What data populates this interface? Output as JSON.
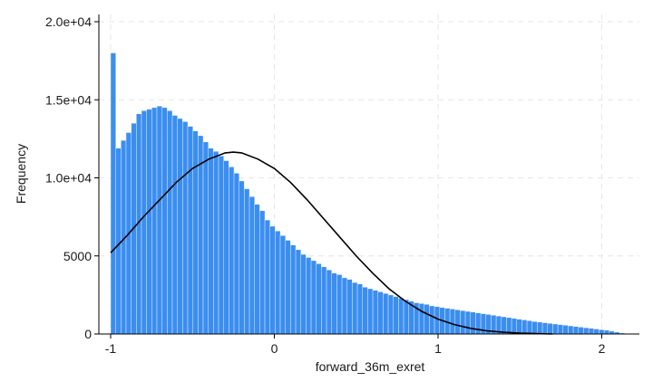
{
  "chart_data": {
    "type": "bar",
    "subtype": "histogram",
    "title": "",
    "xlabel": "forward_36m_exret",
    "ylabel": "Frequency",
    "xlim": [
      -1.0,
      2.2
    ],
    "ylim": [
      0,
      20000
    ],
    "xticks": [
      {
        "value": -1,
        "label": "-1"
      },
      {
        "value": 0,
        "label": "0"
      },
      {
        "value": 1,
        "label": "1"
      },
      {
        "value": 2,
        "label": "2"
      }
    ],
    "yticks": [
      {
        "value": 0,
        "label": "0"
      },
      {
        "value": 5000,
        "label": "5000"
      },
      {
        "value": 10000,
        "label": "1.0e+04"
      },
      {
        "value": 15000,
        "label": "1.5e+04"
      },
      {
        "value": 20000,
        "label": "2.0e+04"
      }
    ],
    "grid": true,
    "colors": {
      "bars": "#3b8ef0",
      "bar_edge": "#ffffff",
      "curve": "#000000"
    },
    "histogram": {
      "bin_start": -1.0,
      "bin_width": 0.0314,
      "counts": [
        18000,
        11900,
        12400,
        12900,
        13500,
        14100,
        14300,
        14400,
        14500,
        14600,
        14500,
        14300,
        14000,
        13800,
        13600,
        13300,
        13000,
        12700,
        12300,
        11900,
        11700,
        11400,
        11100,
        10700,
        10300,
        9800,
        9300,
        8800,
        8300,
        7900,
        7300,
        6900,
        6600,
        6300,
        6000,
        5700,
        5400,
        5100,
        4900,
        4700,
        4500,
        4300,
        4100,
        3900,
        3800,
        3600,
        3500,
        3300,
        3200,
        3000,
        2900,
        2800,
        2700,
        2600,
        2500,
        2400,
        2300,
        2200,
        2100,
        2000,
        1950,
        1900,
        1800,
        1750,
        1700,
        1650,
        1600,
        1550,
        1500,
        1450,
        1400,
        1350,
        1300,
        1250,
        1200,
        1150,
        1100,
        1050,
        1000,
        950,
        900,
        850,
        800,
        760,
        720,
        680,
        640,
        600,
        560,
        520,
        480,
        440,
        400,
        360,
        320,
        280,
        240,
        180,
        120,
        60
      ]
    },
    "normal_curve": {
      "x": [
        -1.0,
        -0.9,
        -0.8,
        -0.7,
        -0.6,
        -0.5,
        -0.4,
        -0.3,
        -0.25,
        -0.2,
        -0.1,
        0.0,
        0.1,
        0.2,
        0.3,
        0.4,
        0.5,
        0.6,
        0.7,
        0.8,
        0.9,
        1.0,
        1.1,
        1.2,
        1.3,
        1.4,
        1.5,
        1.6,
        1.7
      ],
      "y": [
        5200,
        6300,
        7500,
        8600,
        9700,
        10600,
        11200,
        11600,
        11650,
        11600,
        11200,
        10600,
        9700,
        8600,
        7400,
        6200,
        5000,
        3900,
        2900,
        2100,
        1450,
        950,
        600,
        360,
        200,
        110,
        55,
        25,
        0
      ]
    }
  }
}
